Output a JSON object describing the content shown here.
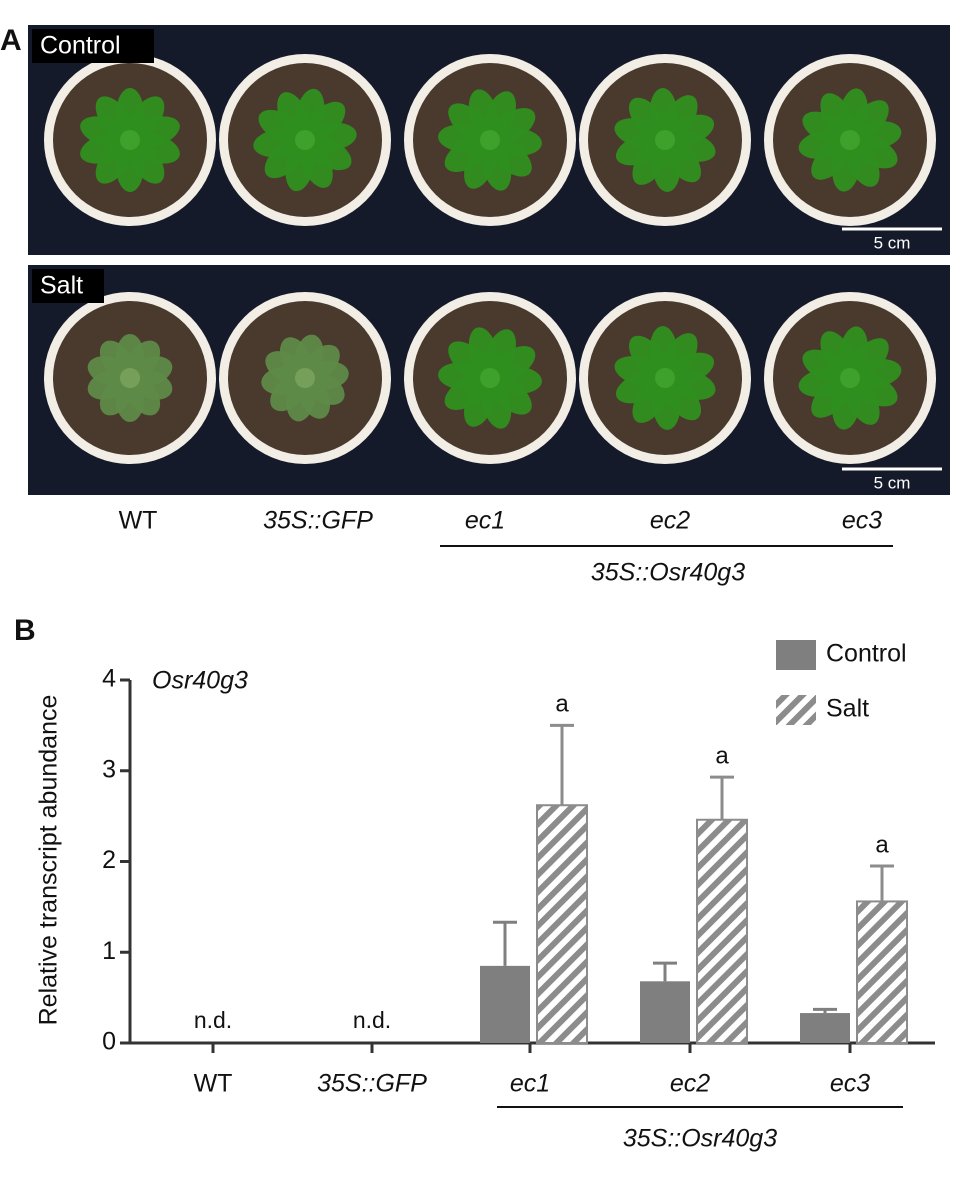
{
  "panel_a": {
    "label": "A",
    "conditions": [
      {
        "name": "Control",
        "scale_bar": "5 cm"
      },
      {
        "name": "Salt",
        "scale_bar": "5 cm"
      }
    ],
    "genotypes": [
      "WT",
      "35S::GFP",
      "ec1",
      "ec2",
      "ec3"
    ],
    "group_label": "35S::Osr40g3"
  },
  "chart_data": {
    "type": "bar",
    "panel_label": "B",
    "ylabel": "Relative transcript abundance",
    "annotation": "Osr40g3",
    "categories": [
      "WT",
      "35S::GFP",
      "ec1",
      "ec2",
      "ec3"
    ],
    "category_notes": [
      "n.d.",
      "n.d.",
      null,
      null,
      null
    ],
    "group_label": "35S::Osr40g3",
    "series": [
      {
        "name": "Control",
        "color": "#7f7f7f",
        "pattern": "solid",
        "values": [
          null,
          null,
          0.85,
          0.68,
          0.33
        ],
        "errors": [
          null,
          null,
          0.48,
          0.2,
          0.04
        ]
      },
      {
        "name": "Salt",
        "color": "#8c8c8c",
        "pattern": "hatch",
        "values": [
          null,
          null,
          2.62,
          2.46,
          1.56
        ],
        "errors": [
          null,
          null,
          0.88,
          0.47,
          0.39
        ],
        "significance": [
          null,
          null,
          "a",
          "a",
          "a"
        ]
      }
    ],
    "ylim": [
      0,
      4
    ],
    "yticks": [
      0,
      1,
      2,
      3,
      4
    ],
    "grid": false,
    "legend": "upper right"
  }
}
